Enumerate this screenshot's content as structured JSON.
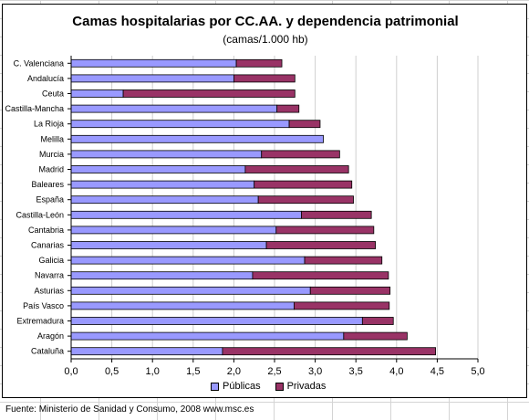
{
  "chart_data": {
    "type": "bar",
    "orientation": "horizontal",
    "stacked": true,
    "title": "Camas hospitalarias por CC.AA. y dependencia patrimonial",
    "subtitle": "(camas/1.000 hb)",
    "categories": [
      "C. Valenciana",
      "Andalucía",
      "Ceuta",
      "Castilla-Mancha",
      "La Rioja",
      "Melilla",
      "Murcia",
      "Madrid",
      "Baleares",
      "España",
      "Castilla-León",
      "Cantabria",
      "Canarias",
      "Galicia",
      "Navarra",
      "Asturias",
      "País Vasco",
      "Extremadura",
      "Aragón",
      "Cataluña"
    ],
    "series": [
      {
        "name": "Públicas",
        "color": "#9999ff",
        "values": [
          2.03,
          2.0,
          0.64,
          2.53,
          2.68,
          3.1,
          2.34,
          2.14,
          2.25,
          2.3,
          2.83,
          2.52,
          2.4,
          2.87,
          2.23,
          2.94,
          2.74,
          3.58,
          3.35,
          1.86
        ]
      },
      {
        "name": "Privadas",
        "color": "#993366",
        "values": [
          0.56,
          0.75,
          2.11,
          0.27,
          0.38,
          0.0,
          0.96,
          1.27,
          1.2,
          1.17,
          0.86,
          1.2,
          1.34,
          0.95,
          1.67,
          0.98,
          1.17,
          0.38,
          0.78,
          2.62
        ]
      }
    ],
    "xlim": [
      0,
      5
    ],
    "xticks": [
      "0,0",
      "0,5",
      "1,0",
      "1,5",
      "2,0",
      "2,5",
      "3,0",
      "3,5",
      "4,0",
      "4,5",
      "5,0"
    ],
    "grid": true,
    "legend_position": "bottom"
  },
  "footer": {
    "source": "Fuente: Ministerio de Sanidad y Consumo, 2008  www.msc.es"
  },
  "colors": {
    "publicas": "#9999ff",
    "privadas": "#993366"
  }
}
